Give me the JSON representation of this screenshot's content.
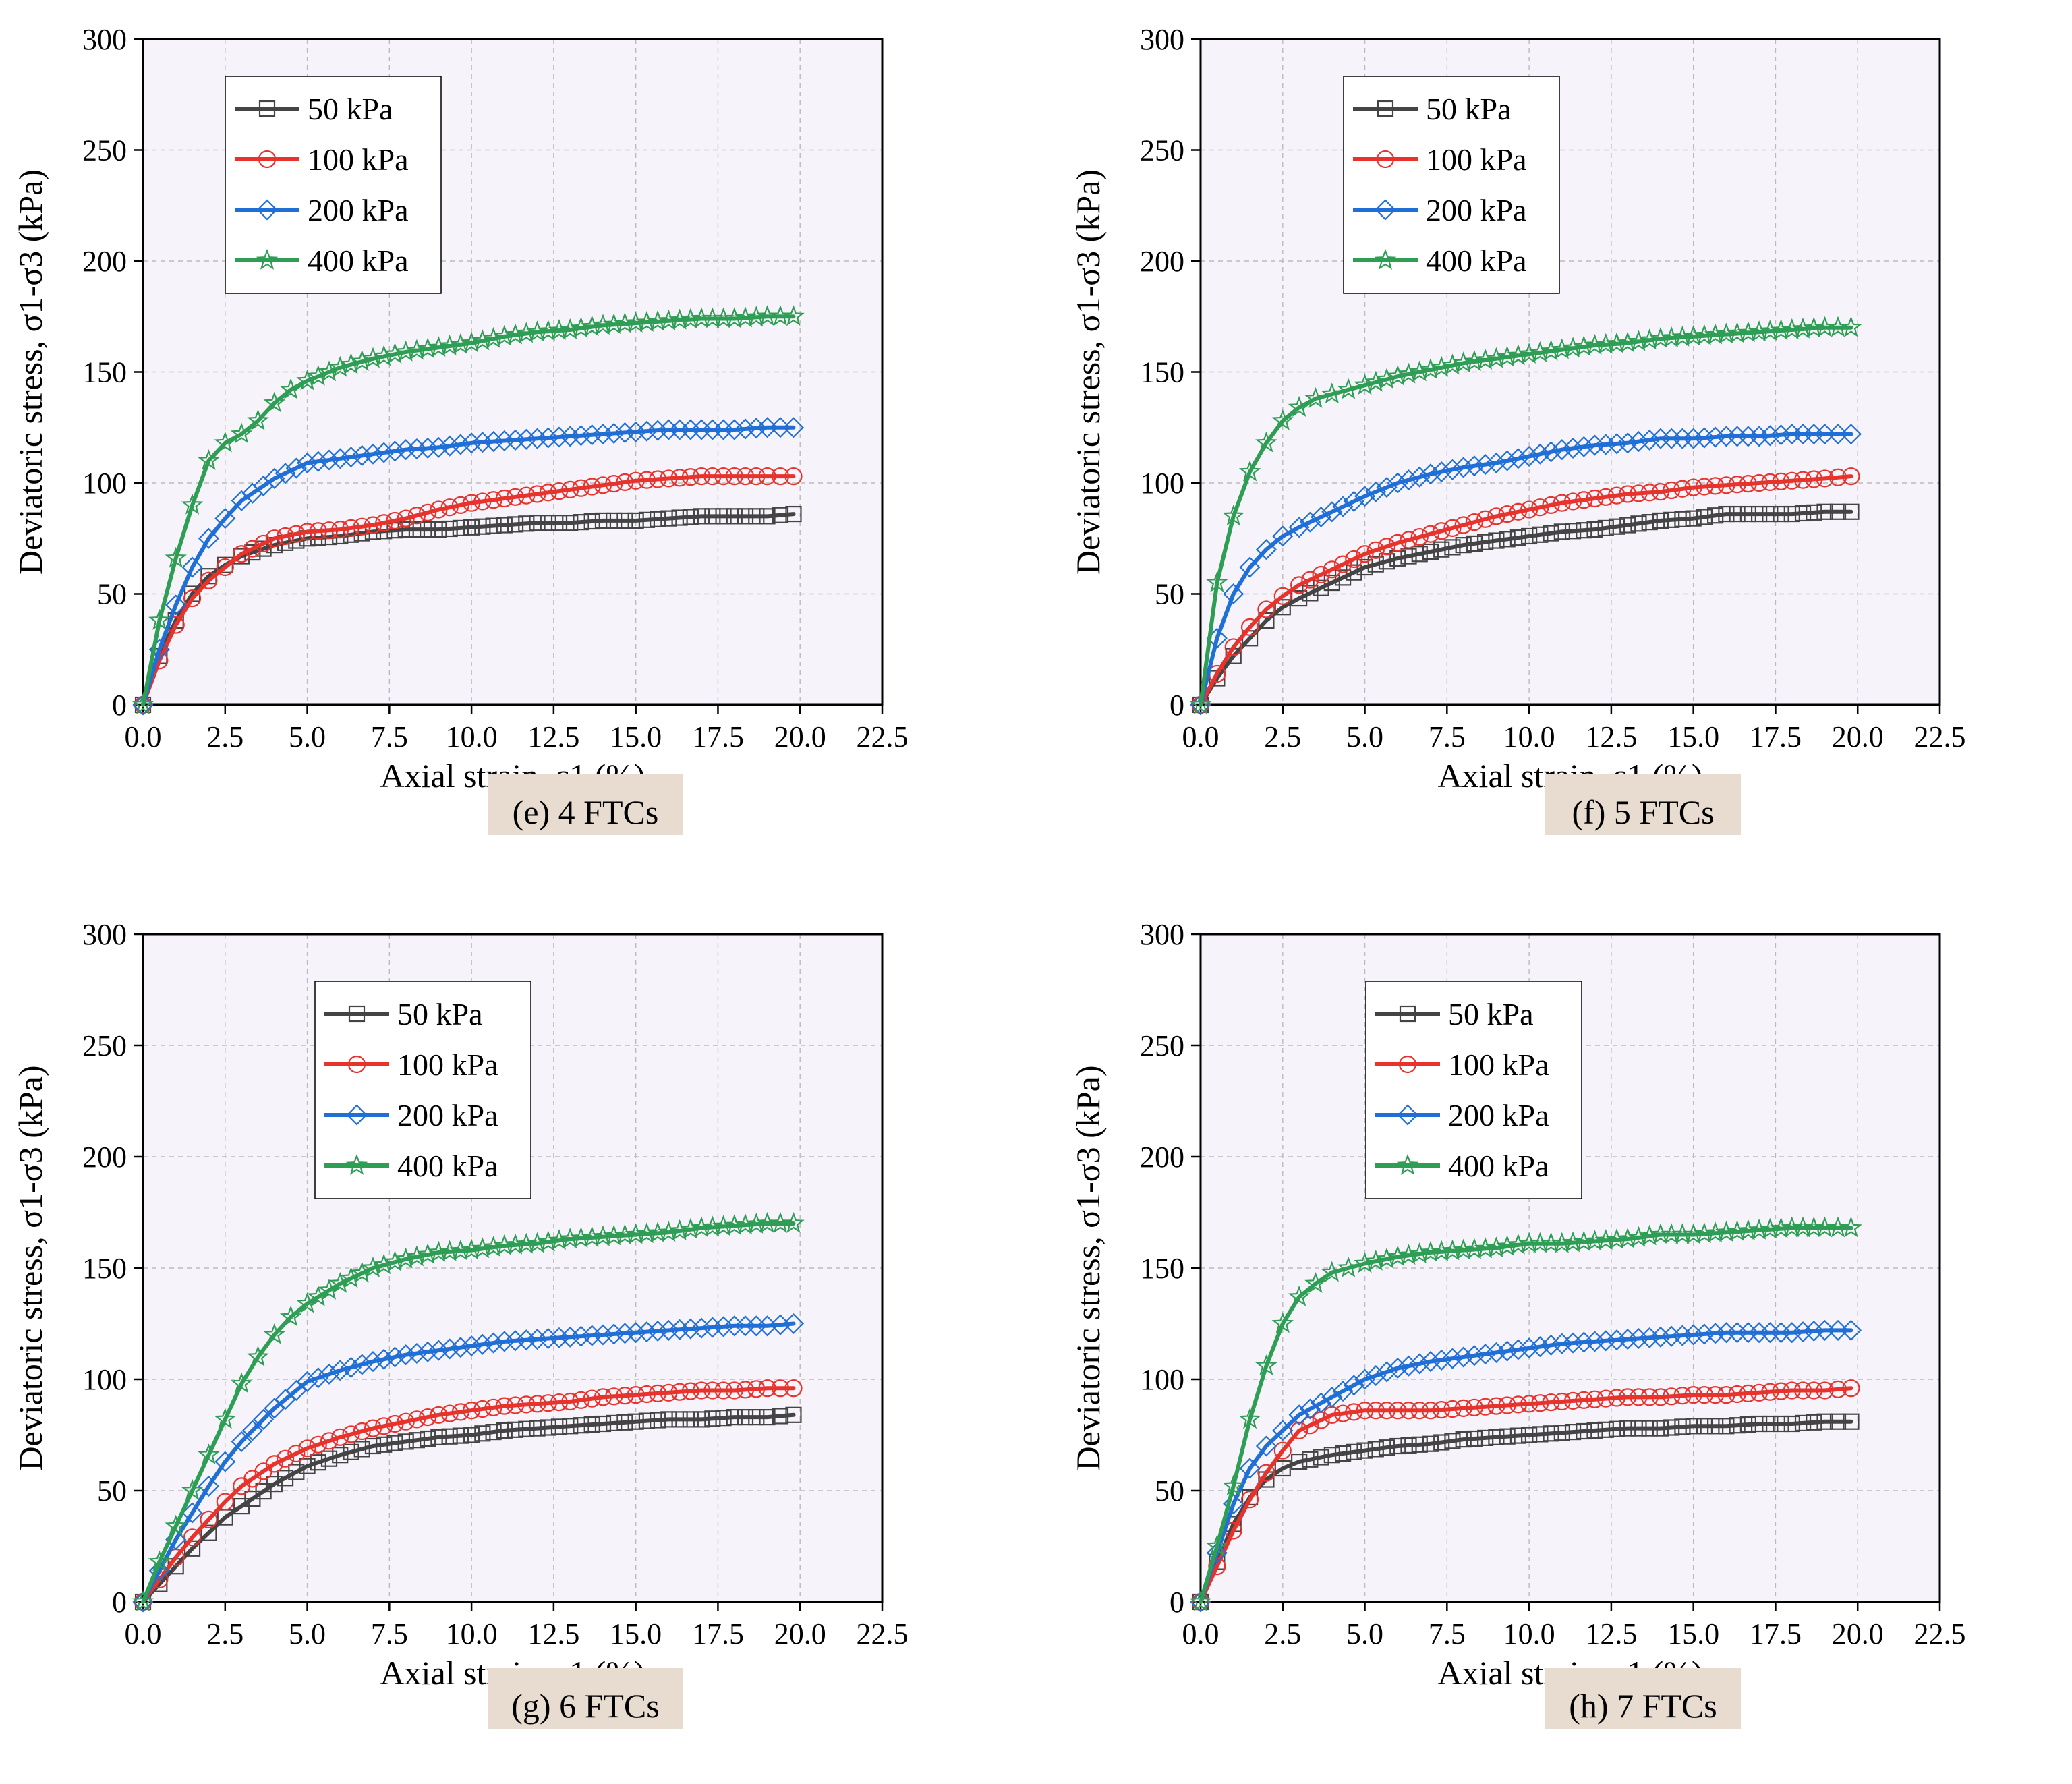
{
  "figure": {
    "panels": [
      {
        "caption": "(e) 4 FTCs"
      },
      {
        "caption": "(f) 5 FTCs"
      },
      {
        "caption": "(g) 6 FTCs"
      },
      {
        "caption": "(h) 7 FTCs"
      }
    ]
  },
  "colors": {
    "50 kPa": "#444444",
    "100 kPa": "#e8332c",
    "200 kPa": "#1f6fd6",
    "400 kPa": "#2f9e55",
    "plot_background": "#f6f4fa",
    "caption_background": "#e8dcd0"
  },
  "chart_data": [
    {
      "type": "line",
      "title": "(e) 4 FTCs",
      "xlabel": "Axial strain, ε1 (%)",
      "ylabel": "Deviatoric stress, σ1-σ3 (kPa)",
      "xlim": [
        0,
        22.5
      ],
      "ylim": [
        0,
        300
      ],
      "xticks": [
        "0.0",
        "2.5",
        "5.0",
        "7.5",
        "10.0",
        "12.5",
        "15.0",
        "17.5",
        "20.0",
        "22.5"
      ],
      "yticks": [
        "0",
        "50",
        "100",
        "150",
        "200",
        "250",
        "300"
      ],
      "grid": true,
      "legend_position": "top-left",
      "series": [
        {
          "name": "50 kPa",
          "marker": "square",
          "x": [
            0,
            0.5,
            1,
            1.5,
            2,
            2.5,
            3,
            4,
            5,
            6,
            7,
            8,
            9,
            10,
            11,
            12,
            13,
            14,
            15,
            16,
            17,
            18,
            19,
            19.8
          ],
          "y": [
            0,
            22,
            38,
            50,
            58,
            63,
            67,
            72,
            75,
            76,
            78,
            79,
            79,
            80,
            81,
            82,
            82,
            83,
            83,
            84,
            85,
            85,
            85,
            86
          ]
        },
        {
          "name": "100 kPa",
          "marker": "circle",
          "x": [
            0,
            0.5,
            1,
            1.5,
            2,
            2.5,
            3,
            4,
            5,
            6,
            7,
            8,
            9,
            10,
            11,
            12,
            13,
            14,
            15,
            16,
            17,
            18,
            19,
            19.8
          ],
          "y": [
            0,
            20,
            36,
            48,
            56,
            62,
            68,
            75,
            78,
            79,
            81,
            84,
            88,
            91,
            93,
            95,
            97,
            99,
            101,
            102,
            103,
            103,
            103,
            103
          ]
        },
        {
          "name": "200 kPa",
          "marker": "diamond",
          "x": [
            0,
            0.5,
            1,
            1.5,
            2,
            2.5,
            3,
            4,
            5,
            6,
            7,
            8,
            9,
            10,
            11,
            12,
            13,
            14,
            15,
            16,
            17,
            18,
            19,
            19.8
          ],
          "y": [
            0,
            25,
            45,
            62,
            75,
            84,
            92,
            102,
            109,
            111,
            113,
            115,
            116,
            118,
            119,
            120,
            121,
            122,
            123,
            124,
            124,
            124,
            125,
            125
          ]
        },
        {
          "name": "400 kPa",
          "marker": "star",
          "x": [
            0,
            0.5,
            1,
            1.5,
            2,
            2.5,
            3,
            3.5,
            4,
            4.5,
            5,
            6,
            7,
            8,
            9,
            10,
            11,
            12,
            13,
            14,
            15,
            16,
            17,
            18,
            19,
            19.8
          ],
          "y": [
            0,
            38,
            66,
            90,
            110,
            118,
            122,
            128,
            136,
            142,
            146,
            152,
            156,
            159,
            161,
            163,
            166,
            168,
            169,
            171,
            172,
            173,
            174,
            174,
            175,
            175
          ]
        }
      ]
    },
    {
      "type": "line",
      "title": "(f) 5 FTCs",
      "xlabel": "Axial strain, ε1 (%)",
      "ylabel": "Deviatoric stress, σ1-σ3 (kPa)",
      "xlim": [
        0,
        22.5
      ],
      "ylim": [
        0,
        300
      ],
      "xticks": [
        "0.0",
        "2.5",
        "5.0",
        "7.5",
        "10.0",
        "12.5",
        "15.0",
        "17.5",
        "20.0",
        "22.5"
      ],
      "yticks": [
        "0",
        "50",
        "100",
        "150",
        "200",
        "250",
        "300"
      ],
      "grid": true,
      "legend_position": "top-left",
      "series": [
        {
          "name": "50 kPa",
          "marker": "square",
          "x": [
            0,
            0.5,
            1,
            1.5,
            2,
            2.5,
            3,
            4,
            5,
            6,
            7,
            8,
            9,
            10,
            11,
            12,
            13,
            14,
            15,
            16,
            17,
            18,
            19,
            19.8
          ],
          "y": [
            0,
            12,
            22,
            30,
            38,
            44,
            48,
            55,
            62,
            66,
            69,
            72,
            74,
            76,
            78,
            79,
            81,
            83,
            84,
            86,
            86,
            86,
            87,
            87
          ]
        },
        {
          "name": "100 kPa",
          "marker": "circle",
          "x": [
            0,
            0.5,
            1,
            1.5,
            2,
            2.5,
            3,
            4,
            5,
            6,
            7,
            8,
            9,
            10,
            11,
            12,
            13,
            14,
            15,
            16,
            17,
            18,
            19,
            19.8
          ],
          "y": [
            0,
            14,
            26,
            35,
            43,
            49,
            54,
            61,
            68,
            73,
            77,
            81,
            85,
            88,
            91,
            93,
            95,
            96,
            98,
            99,
            100,
            101,
            102,
            103
          ]
        },
        {
          "name": "200 kPa",
          "marker": "diamond",
          "x": [
            0,
            0.5,
            1,
            1.5,
            2,
            2.5,
            3,
            4,
            5,
            6,
            7,
            8,
            9,
            10,
            11,
            12,
            13,
            14,
            15,
            16,
            17,
            18,
            19,
            19.8
          ],
          "y": [
            0,
            30,
            50,
            62,
            70,
            76,
            80,
            87,
            94,
            100,
            104,
            107,
            109,
            112,
            115,
            117,
            118,
            120,
            120,
            121,
            121,
            122,
            122,
            122
          ]
        },
        {
          "name": "400 kPa",
          "marker": "star",
          "x": [
            0,
            0.5,
            1,
            1.5,
            2,
            2.5,
            3,
            3.5,
            4,
            4.5,
            5,
            6,
            7,
            8,
            9,
            10,
            11,
            12,
            13,
            14,
            15,
            16,
            17,
            18,
            19,
            19.8
          ],
          "y": [
            0,
            55,
            85,
            105,
            118,
            128,
            134,
            138,
            140,
            142,
            144,
            148,
            151,
            154,
            156,
            158,
            160,
            162,
            163,
            165,
            166,
            167,
            168,
            169,
            170,
            170
          ]
        }
      ]
    },
    {
      "type": "line",
      "title": "(g) 6 FTCs",
      "xlabel": "Axial strain, ε1 (%)",
      "ylabel": "Deviatoric stress, σ1-σ3 (kPa)",
      "xlim": [
        0,
        22.5
      ],
      "ylim": [
        0,
        300
      ],
      "xticks": [
        "0.0",
        "2.5",
        "5.0",
        "7.5",
        "10.0",
        "12.5",
        "15.0",
        "17.5",
        "20.0",
        "22.5"
      ],
      "yticks": [
        "0",
        "50",
        "100",
        "150",
        "200",
        "250",
        "300"
      ],
      "grid": true,
      "legend_position": "top-left",
      "series": [
        {
          "name": "50 kPa",
          "marker": "square",
          "x": [
            0,
            0.5,
            1,
            1.5,
            2,
            2.5,
            3,
            4,
            5,
            6,
            7,
            8,
            9,
            10,
            11,
            12,
            13,
            14,
            15,
            16,
            17,
            18,
            19,
            19.8
          ],
          "y": [
            0,
            8,
            16,
            24,
            31,
            38,
            43,
            53,
            61,
            66,
            70,
            72,
            74,
            75,
            77,
            78,
            79,
            80,
            81,
            82,
            82,
            83,
            83,
            84
          ]
        },
        {
          "name": "100 kPa",
          "marker": "circle",
          "x": [
            0,
            0.5,
            1,
            1.5,
            2,
            2.5,
            3,
            4,
            5,
            6,
            7,
            8,
            9,
            10,
            11,
            12,
            13,
            14,
            15,
            16,
            17,
            18,
            19,
            19.8
          ],
          "y": [
            0,
            10,
            20,
            29,
            37,
            45,
            52,
            62,
            69,
            74,
            78,
            81,
            84,
            86,
            88,
            89,
            90,
            92,
            93,
            94,
            95,
            95,
            96,
            96
          ]
        },
        {
          "name": "200 kPa",
          "marker": "diamond",
          "x": [
            0,
            0.5,
            1,
            1.5,
            2,
            2.5,
            3,
            4,
            5,
            6,
            7,
            8,
            9,
            10,
            11,
            12,
            13,
            14,
            15,
            16,
            17,
            18,
            19,
            19.8
          ],
          "y": [
            0,
            14,
            28,
            40,
            52,
            63,
            72,
            87,
            99,
            104,
            108,
            111,
            113,
            115,
            117,
            118,
            119,
            120,
            121,
            122,
            123,
            124,
            124,
            125
          ]
        },
        {
          "name": "400 kPa",
          "marker": "star",
          "x": [
            0,
            0.5,
            1,
            1.5,
            2,
            2.5,
            3,
            3.5,
            4,
            4.5,
            5,
            6,
            7,
            8,
            9,
            10,
            11,
            12,
            13,
            14,
            15,
            16,
            17,
            18,
            19,
            19.8
          ],
          "y": [
            0,
            18,
            34,
            50,
            66,
            82,
            98,
            110,
            120,
            128,
            134,
            143,
            150,
            154,
            157,
            158,
            160,
            161,
            163,
            164,
            165,
            166,
            168,
            169,
            170,
            170
          ]
        }
      ]
    },
    {
      "type": "line",
      "title": "(h) 7 FTCs",
      "xlabel": "Axial strain, ε1 (%)",
      "ylabel": "Deviatoric stress, σ1-σ3 (kPa)",
      "xlim": [
        0,
        22.5
      ],
      "ylim": [
        0,
        300
      ],
      "xticks": [
        "0.0",
        "2.5",
        "5.0",
        "7.5",
        "10.0",
        "12.5",
        "15.0",
        "17.5",
        "20.0",
        "22.5"
      ],
      "yticks": [
        "0",
        "50",
        "100",
        "150",
        "200",
        "250",
        "300"
      ],
      "grid": true,
      "legend_position": "top-left",
      "series": [
        {
          "name": "50 kPa",
          "marker": "square",
          "x": [
            0,
            0.5,
            1,
            1.5,
            2,
            2.5,
            3,
            4,
            5,
            6,
            7,
            8,
            9,
            10,
            11,
            12,
            13,
            14,
            15,
            16,
            17,
            18,
            19,
            19.8
          ],
          "y": [
            0,
            18,
            35,
            47,
            55,
            60,
            63,
            66,
            68,
            70,
            71,
            73,
            74,
            75,
            76,
            77,
            78,
            78,
            79,
            79,
            80,
            80,
            81,
            81
          ]
        },
        {
          "name": "100 kPa",
          "marker": "circle",
          "x": [
            0,
            0.5,
            1,
            1.5,
            2,
            2.5,
            3,
            4,
            5,
            6,
            7,
            8,
            9,
            10,
            11,
            12,
            13,
            14,
            15,
            16,
            17,
            18,
            19,
            19.8
          ],
          "y": [
            0,
            16,
            32,
            46,
            58,
            68,
            77,
            84,
            86,
            86,
            86,
            87,
            88,
            89,
            90,
            91,
            92,
            92,
            93,
            93,
            94,
            95,
            95,
            96
          ]
        },
        {
          "name": "200 kPa",
          "marker": "diamond",
          "x": [
            0,
            0.5,
            1,
            1.5,
            2,
            2.5,
            3,
            4,
            5,
            6,
            7,
            8,
            9,
            10,
            11,
            12,
            13,
            14,
            15,
            16,
            17,
            18,
            19,
            19.8
          ],
          "y": [
            0,
            22,
            44,
            60,
            70,
            77,
            84,
            92,
            100,
            105,
            108,
            110,
            112,
            114,
            116,
            117,
            118,
            119,
            120,
            121,
            121,
            121,
            122,
            122
          ]
        },
        {
          "name": "400 kPa",
          "marker": "star",
          "x": [
            0,
            0.5,
            1,
            1.5,
            2,
            2.5,
            3,
            3.5,
            4,
            4.5,
            5,
            6,
            7,
            8,
            9,
            10,
            11,
            12,
            13,
            14,
            15,
            16,
            17,
            18,
            19,
            19.8
          ],
          "y": [
            0,
            25,
            52,
            82,
            106,
            125,
            137,
            143,
            148,
            150,
            152,
            155,
            157,
            158,
            159,
            161,
            161,
            162,
            163,
            165,
            165,
            166,
            167,
            168,
            168,
            168
          ]
        }
      ]
    }
  ]
}
